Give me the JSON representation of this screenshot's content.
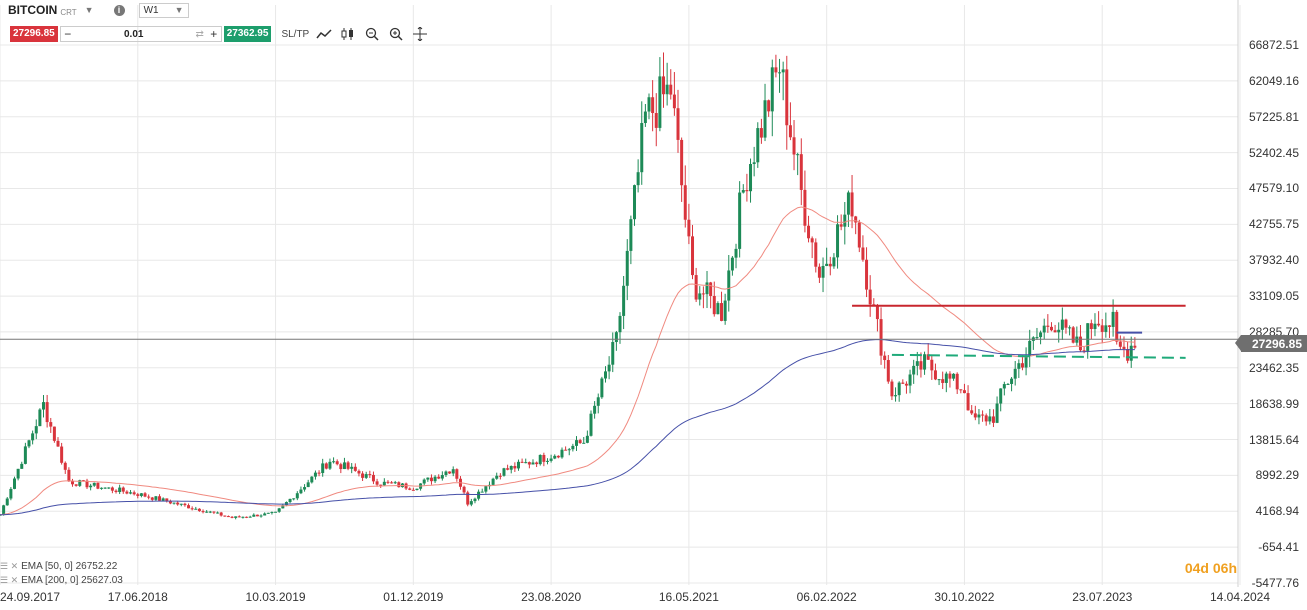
{
  "toolbar": {
    "symbol": "BITCOIN",
    "symbol_suffix": "CRT",
    "symbol_caret": "▼",
    "info_icon": "i",
    "timeframe": "W1",
    "timeframe_caret": "▼",
    "sell_price": "27296.85",
    "minus": "−",
    "volume": "0.01",
    "cycle_icon": "⇄",
    "plus": "+",
    "buy_price": "27362.95",
    "sltp": "SL/TP",
    "tools": [
      "line-chart-icon",
      "candles-icon",
      "zoom-out-icon",
      "zoom-in-icon",
      "crosshair-icon"
    ]
  },
  "colors": {
    "bull": "#1d8a57",
    "bear": "#d9343c",
    "ema50": "#f08a80",
    "ema200": "#4650a8",
    "resistance": "#c8262e",
    "support": "#1faa7a",
    "price_line": "#777777",
    "grid": "#e8e8e8"
  },
  "price_axis": {
    "labels": [
      "66872.51",
      "62049.16",
      "57225.81",
      "52402.45",
      "47579.10",
      "42755.75",
      "37932.40",
      "33109.05",
      "28285.70",
      "23462.35",
      "18638.99",
      "13815.64",
      "8992.29",
      "4168.94",
      "-654.41",
      "-5477.76"
    ],
    "last_price": "27296.85"
  },
  "date_axis": {
    "labels": [
      "24.09.2017",
      "17.06.2018",
      "10.03.2019",
      "01.12.2019",
      "23.08.2020",
      "16.05.2021",
      "06.02.2022",
      "30.10.2022",
      "23.07.2023",
      "14.04.2024"
    ]
  },
  "legend": [
    {
      "icon": "☰ ✕",
      "text": "EMA [50, 0] 26752.22"
    },
    {
      "icon": "☰ ✕",
      "text": "EMA [200, 0] 25627.03"
    }
  ],
  "timer": {
    "days": "04d",
    "hours": "06h"
  },
  "chart_data": {
    "type": "candlestick",
    "symbol": "BITCOIN",
    "timeframe": "W1",
    "y_range": [
      -5477.76,
      66872.51
    ],
    "x_range": [
      "2017-09-24",
      "2024-04-14"
    ],
    "last_price": 27296.85,
    "close_path": [
      {
        "date": "2017-09-24",
        "close": 3700
      },
      {
        "date": "2017-12-17",
        "close": 18500
      },
      {
        "date": "2018-02-04",
        "close": 8200
      },
      {
        "date": "2018-06-17",
        "close": 6500
      },
      {
        "date": "2018-12-16",
        "close": 3300
      },
      {
        "date": "2019-03-10",
        "close": 3900
      },
      {
        "date": "2019-06-23",
        "close": 11000
      },
      {
        "date": "2019-09-29",
        "close": 8000
      },
      {
        "date": "2019-12-01",
        "close": 7400
      },
      {
        "date": "2020-02-16",
        "close": 10000
      },
      {
        "date": "2020-03-15",
        "close": 5300
      },
      {
        "date": "2020-05-17",
        "close": 9500
      },
      {
        "date": "2020-08-23",
        "close": 11700
      },
      {
        "date": "2020-10-25",
        "close": 13500
      },
      {
        "date": "2020-12-27",
        "close": 27000
      },
      {
        "date": "2021-02-21",
        "close": 57000
      },
      {
        "date": "2021-04-11",
        "close": 61000
      },
      {
        "date": "2021-05-23",
        "close": 35000
      },
      {
        "date": "2021-07-18",
        "close": 31000
      },
      {
        "date": "2021-09-05",
        "close": 50000
      },
      {
        "date": "2021-11-07",
        "close": 64000
      },
      {
        "date": "2021-12-19",
        "close": 47000
      },
      {
        "date": "2022-01-23",
        "close": 36000
      },
      {
        "date": "2022-03-27",
        "close": 46000
      },
      {
        "date": "2022-05-08",
        "close": 31000
      },
      {
        "date": "2022-06-12",
        "close": 20000
      },
      {
        "date": "2022-08-14",
        "close": 24000
      },
      {
        "date": "2022-10-30",
        "close": 20500
      },
      {
        "date": "2022-11-13",
        "close": 16500
      },
      {
        "date": "2022-12-25",
        "close": 16800
      },
      {
        "date": "2023-01-15",
        "close": 21000
      },
      {
        "date": "2023-03-19",
        "close": 27500
      },
      {
        "date": "2023-04-16",
        "close": 30000
      },
      {
        "date": "2023-06-11",
        "close": 26000
      },
      {
        "date": "2023-07-09",
        "close": 30300
      },
      {
        "date": "2023-08-13",
        "close": 29300
      },
      {
        "date": "2023-08-20",
        "close": 26000
      },
      {
        "date": "2023-09-10",
        "close": 25800
      },
      {
        "date": "2023-09-24",
        "close": 27296.85
      }
    ],
    "ema50": {
      "label": "EMA [50, 0] 26752.22",
      "value": 26752.22
    },
    "ema200": {
      "label": "EMA [200, 0] 25627.03",
      "value": 25627.03
    },
    "resistance_level": 31800,
    "support_level_start": 25200,
    "support_level_end": 24800,
    "support_start_date": "2022-06-12",
    "support_end_date": "2023-12-31"
  }
}
